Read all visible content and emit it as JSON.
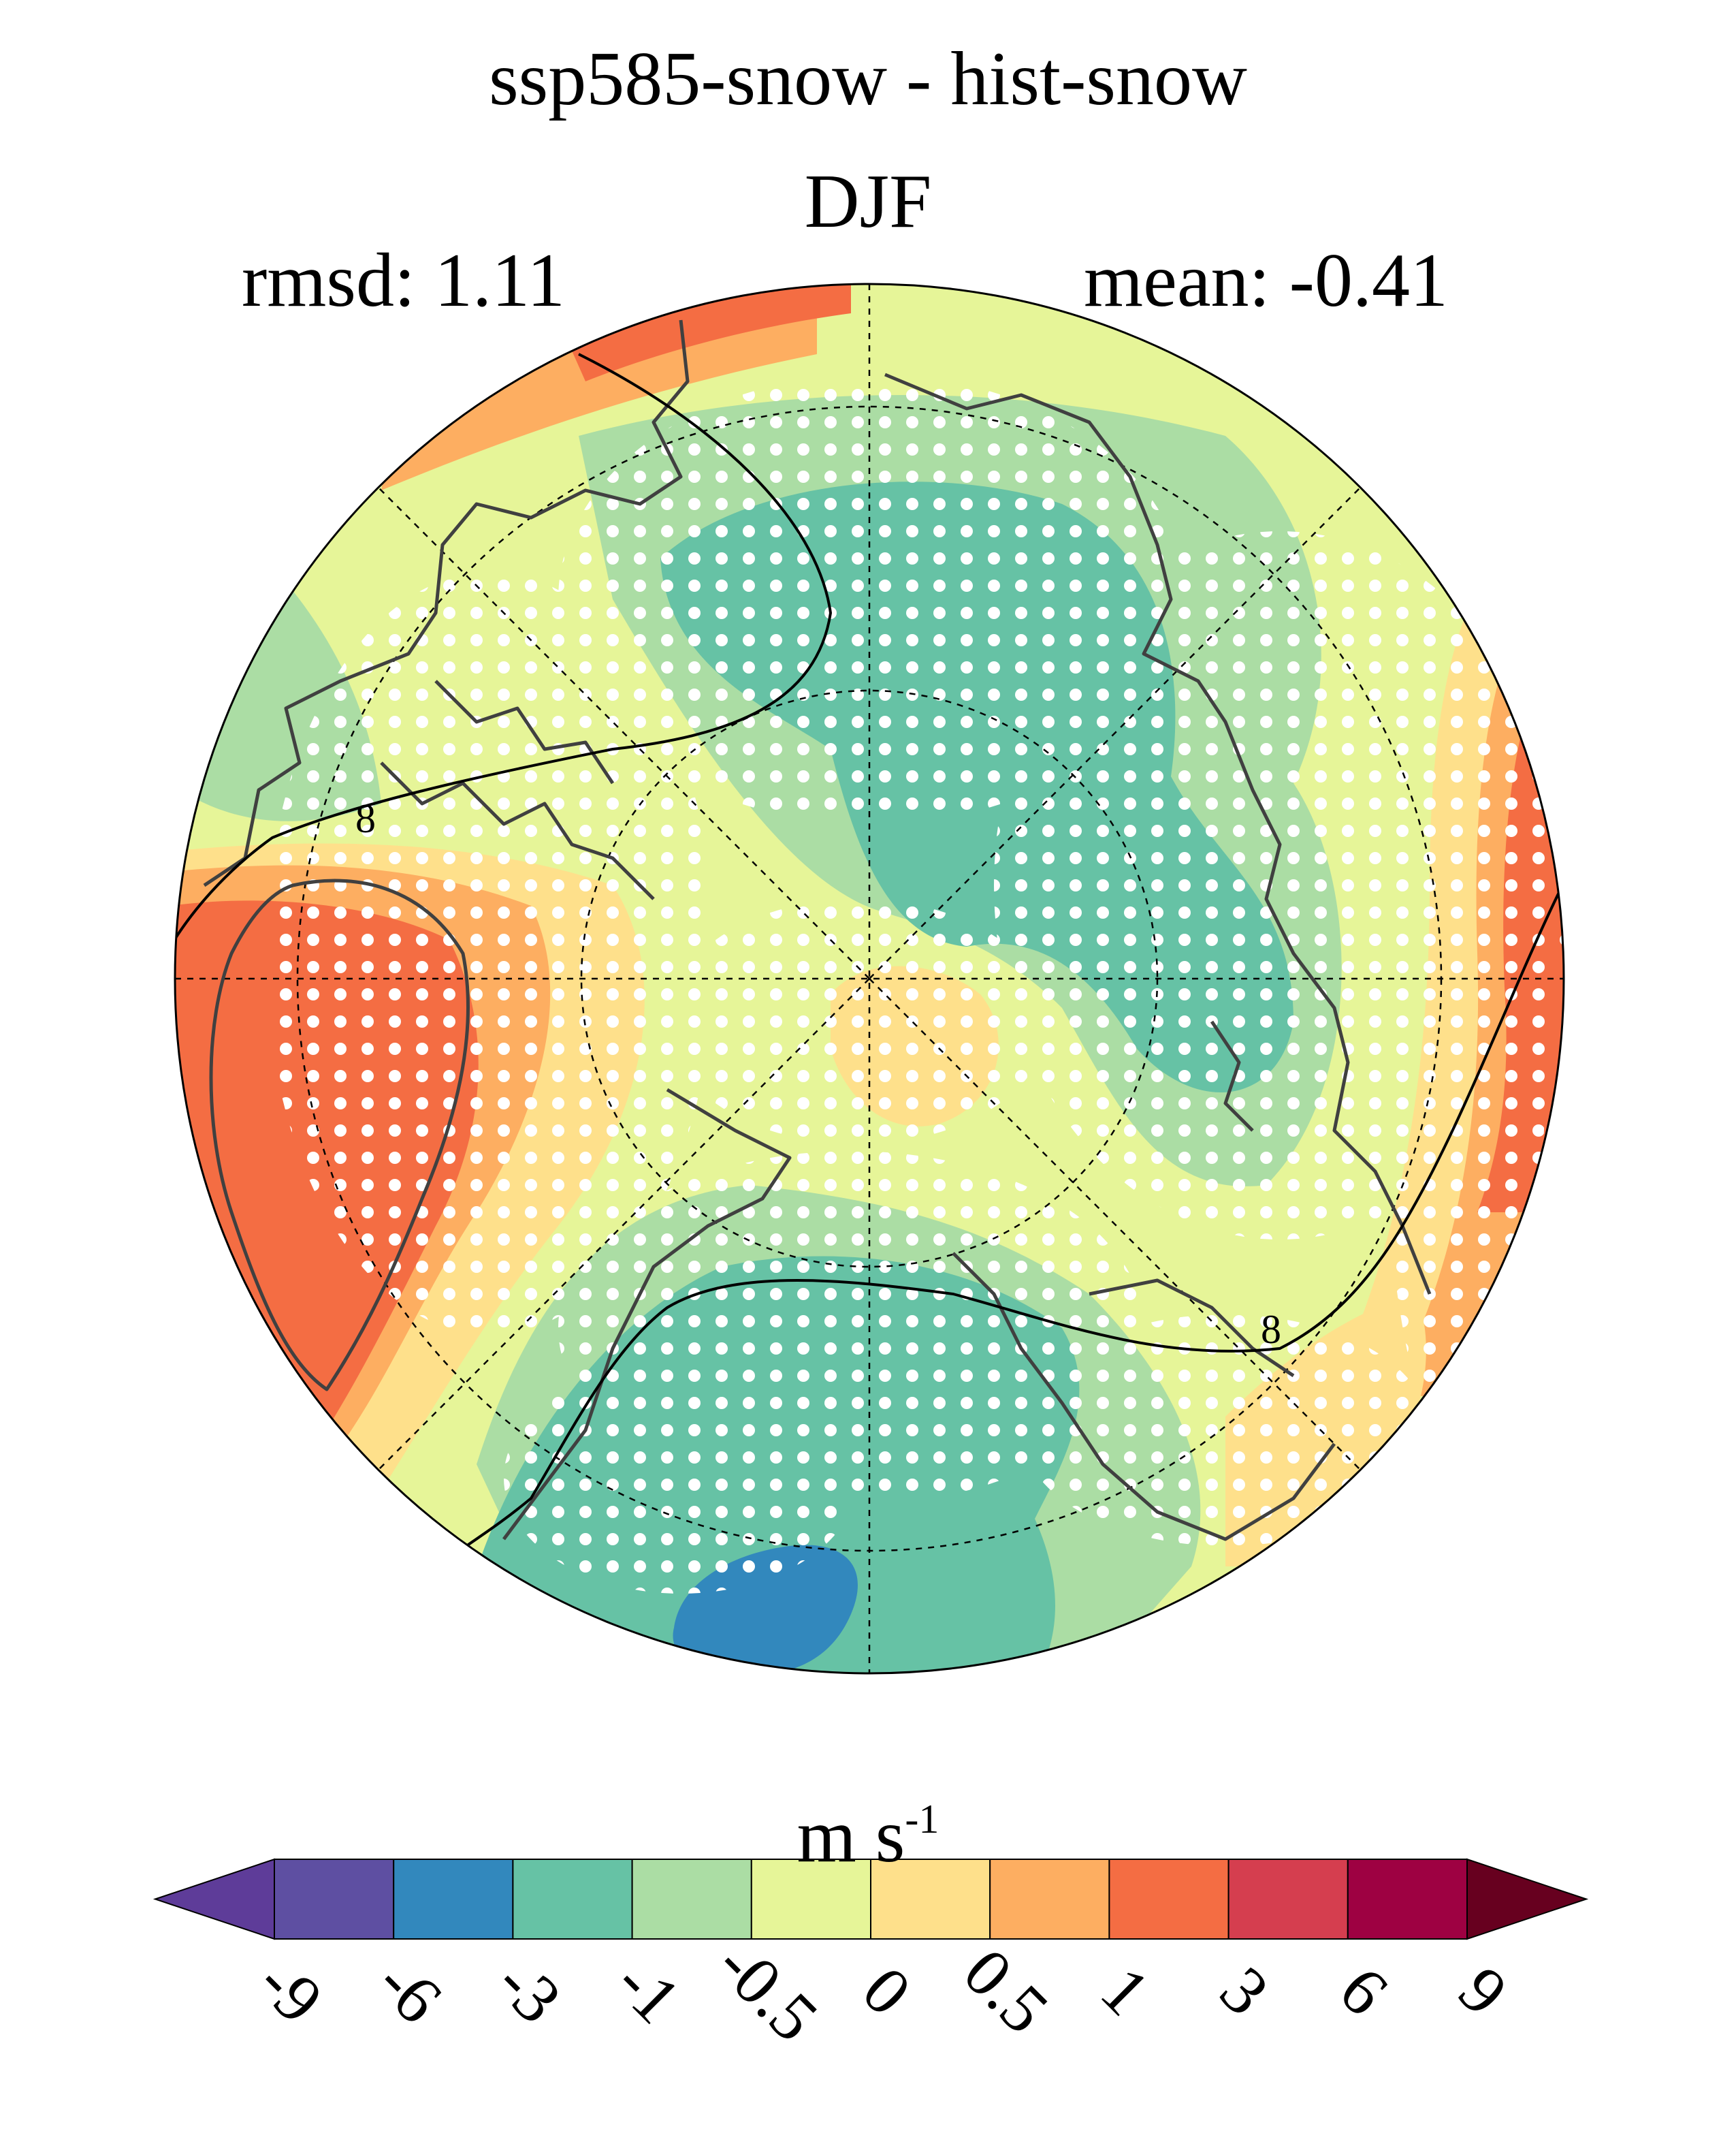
{
  "map": {
    "title": "ssp585-snow - hist-snow",
    "season": "DJF",
    "rmsd_label": "rmsd: 1.11",
    "mean_label": "mean: -0.41",
    "projection": "north-polar-stereographic",
    "contour_label": "8",
    "stippling": "white dots mark significant areas"
  },
  "colorbar": {
    "unit_base": "m s",
    "unit_exp": "-1",
    "levels": [
      "-9",
      "-6",
      "-3",
      "-1",
      "-0.5",
      "0",
      "0.5",
      "1",
      "3",
      "6",
      "9"
    ],
    "colors": [
      "#5e3c99",
      "#5e4fa2",
      "#3288bd",
      "#66c2a5",
      "#abdda4",
      "#e6f598",
      "#fee08b",
      "#fdae61",
      "#f46d43",
      "#d53e4f",
      "#9e0142",
      "#67001f"
    ],
    "extend": "both"
  }
}
